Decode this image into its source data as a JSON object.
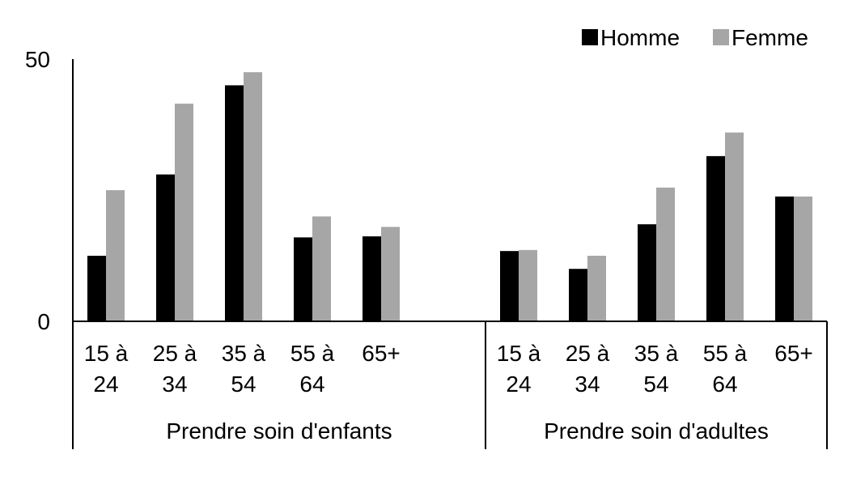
{
  "chart_data": {
    "type": "bar",
    "ylim": [
      0,
      50
    ],
    "yticks": [
      "0",
      "50"
    ],
    "grid": false,
    "legend_position": "top-right",
    "groups": [
      {
        "label": "Prendre soin d'enfants",
        "categories": [
          [
            "15 à",
            "24"
          ],
          [
            "25 à",
            "34"
          ],
          [
            "35 à",
            "54"
          ],
          [
            "55 à",
            "64"
          ],
          [
            "65+"
          ]
        ]
      },
      {
        "label": "Prendre soin d'adultes",
        "categories": [
          [
            "15 à",
            "24"
          ],
          [
            "25 à",
            "34"
          ],
          [
            "35 à",
            "54"
          ],
          [
            "55 à",
            "64"
          ],
          [
            "65+"
          ]
        ]
      }
    ],
    "series": [
      {
        "name": "Homme",
        "color": "#000000",
        "values": [
          [
            12.5,
            28,
            45,
            16,
            16.2
          ],
          [
            13.4,
            10,
            18.5,
            31.5,
            23.8
          ]
        ]
      },
      {
        "name": "Femme",
        "color": "#a6a6a6",
        "values": [
          [
            25,
            41.5,
            47.5,
            20,
            18
          ],
          [
            13.6,
            12.5,
            25.5,
            36,
            23.8
          ]
        ]
      }
    ]
  }
}
